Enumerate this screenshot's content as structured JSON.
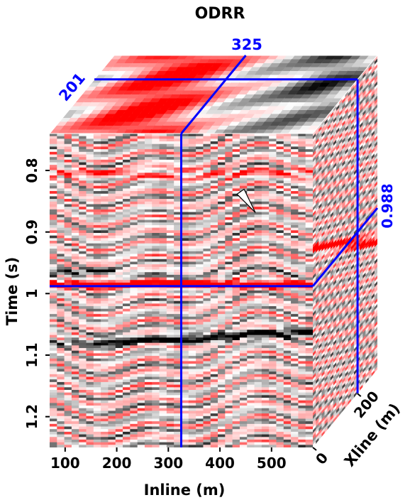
{
  "chart_data": {
    "type": "heatmap",
    "title": "ODRR",
    "xlabel": "Inline (m)",
    "ylabel": "Time (s)",
    "zlabel": "Xline (m)",
    "xlim": [
      70,
      580
    ],
    "ylim": [
      0.74,
      1.25
    ],
    "zlim": [
      0,
      290
    ],
    "x_ticks": [
      100,
      200,
      300,
      400,
      500
    ],
    "y_ticks": [
      0.8,
      0.9,
      1,
      1.1,
      1.2
    ],
    "z_ticks": [
      0,
      200
    ],
    "x_tick_labels": [
      "100",
      "200",
      "300",
      "400",
      "500"
    ],
    "y_tick_labels": [
      "0.8",
      "0.9",
      "1",
      "1.1",
      "1.2"
    ],
    "z_tick_labels": [
      "0",
      "200"
    ],
    "slice_inline_label": "325",
    "slice_xline_label": "201",
    "slice_time_label": "0.988",
    "slice_inline": 325,
    "slice_xline": 201,
    "slice_time": 0.988,
    "colormap": "white-gray-black (negative) / white-red (positive)",
    "grid": false,
    "annotations": [
      {
        "shape": "arrow",
        "x": 455,
        "y": 0.85,
        "pointing": "down-right"
      }
    ],
    "colors": {
      "slice_lines": "#0000ff",
      "positive": "#ff0000",
      "negative": "#000000",
      "background": "#ffffff"
    }
  }
}
